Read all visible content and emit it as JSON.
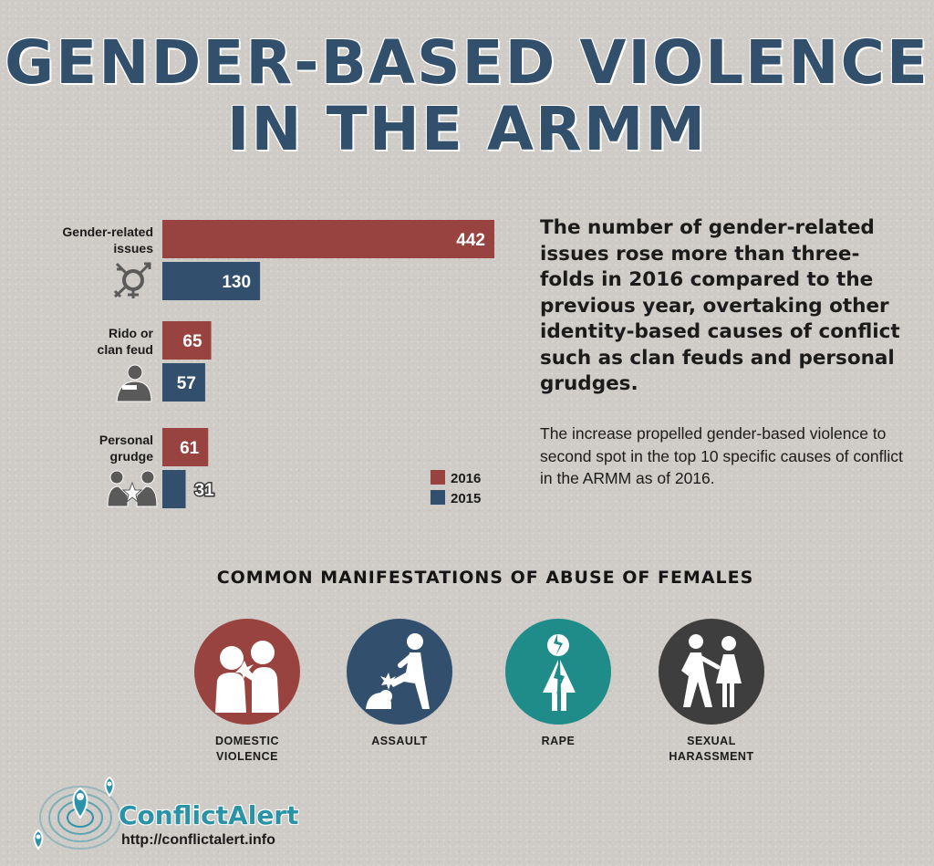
{
  "title": {
    "line1": "GENDER-BASED VIOLENCE",
    "line2": "IN THE ARMM"
  },
  "chart_data": {
    "type": "bar",
    "orientation": "horizontal",
    "categories": [
      {
        "line1": "Gender-related",
        "line2": "issues",
        "icon": "gender-symbol-icon"
      },
      {
        "line1": "Rido or",
        "line2": "clan feud",
        "icon": "gunman-icon"
      },
      {
        "line1": "Personal",
        "line2": "grudge",
        "icon": "confrontation-icon"
      }
    ],
    "series": [
      {
        "name": "2016",
        "color": "#994340",
        "values": [
          442,
          65,
          61
        ]
      },
      {
        "name": "2015",
        "color": "#32506e",
        "values": [
          130,
          57,
          31
        ]
      }
    ],
    "xlim": [
      0,
      442
    ],
    "grid": false,
    "legend_position": "bottom-right"
  },
  "headline": "The number of gender-related issues rose more than three-folds in 2016 compared to the previous year, overtaking other identity-based causes of conflict such as clan feuds and personal grudges.",
  "subtext": "The increase propelled gender-based violence to second spot in the top 10 specific causes of conflict in the ARMM as of 2016.",
  "section_title": "COMMON MANIFESTATIONS OF ABUSE OF FEMALES",
  "manifestations": [
    {
      "label": "DOMESTIC\nVIOLENCE",
      "color": "#994340",
      "icon": "domestic-violence-icon"
    },
    {
      "label": "ASSAULT",
      "color": "#32506e",
      "icon": "assault-icon"
    },
    {
      "label": "RAPE",
      "color": "#1f8c8a",
      "icon": "rape-icon"
    },
    {
      "label": "SEXUAL\nHARASSMENT",
      "color": "#3e3e3e",
      "icon": "harassment-icon"
    }
  ],
  "footer": {
    "brand": "ConflictAlert",
    "url": "http://conflictalert.info"
  }
}
